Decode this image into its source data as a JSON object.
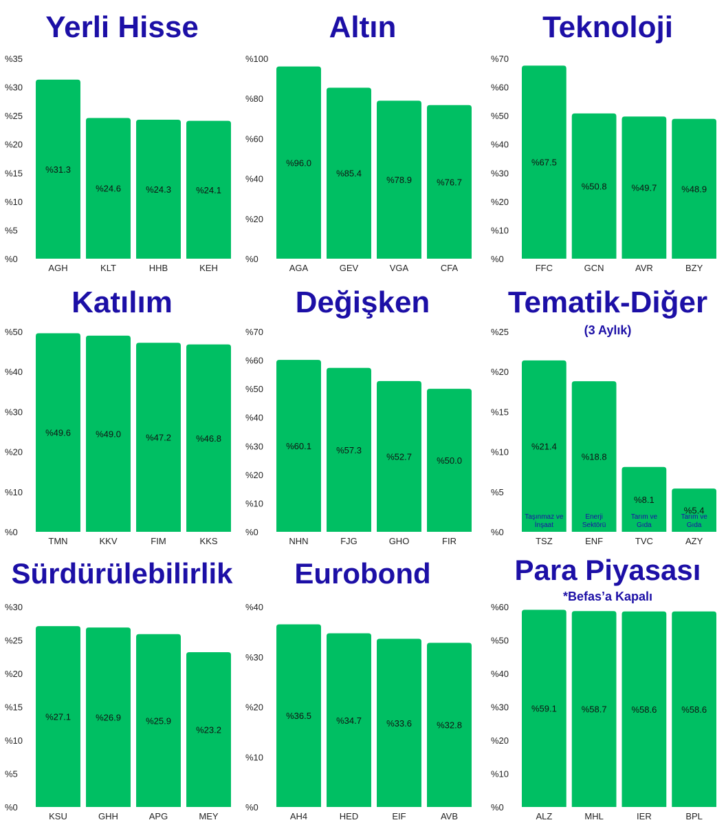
{
  "colors": {
    "bar": "#00bf63",
    "title": "#1c0fa6",
    "text": "#222222"
  },
  "chart_data": [
    {
      "type": "bar",
      "title": "Yerli Hisse",
      "subtitle": "",
      "ylim": [
        0,
        35
      ],
      "yticks": [
        0,
        5,
        10,
        15,
        20,
        25,
        30,
        35
      ],
      "tick_prefix": "%",
      "categories": [
        "AGH",
        "KLT",
        "HHB",
        "KEH"
      ],
      "values": [
        31.3,
        24.6,
        24.3,
        24.1
      ],
      "data_labels": [
        "%31.3",
        "%24.6",
        "%24.3",
        "%24.1"
      ]
    },
    {
      "type": "bar",
      "title": "Altın",
      "subtitle": "",
      "ylim": [
        0,
        100
      ],
      "yticks": [
        0,
        20,
        40,
        60,
        80,
        100
      ],
      "tick_prefix": "%",
      "categories": [
        "AGA",
        "GEV",
        "VGA",
        "CFA"
      ],
      "values": [
        96.0,
        85.4,
        78.9,
        76.7
      ],
      "data_labels": [
        "%96.0",
        "%85.4",
        "%78.9",
        "%76.7"
      ]
    },
    {
      "type": "bar",
      "title": "Teknoloji",
      "subtitle": "",
      "ylim": [
        0,
        70
      ],
      "yticks": [
        0,
        10,
        20,
        30,
        40,
        50,
        60,
        70
      ],
      "tick_prefix": "%",
      "categories": [
        "FFC",
        "GCN",
        "AVR",
        "BZY"
      ],
      "values": [
        67.5,
        50.8,
        49.7,
        48.9
      ],
      "data_labels": [
        "%67.5",
        "%50.8",
        "%49.7",
        "%48.9"
      ]
    },
    {
      "type": "bar",
      "title": "Katılım",
      "subtitle": "",
      "ylim": [
        0,
        50
      ],
      "yticks": [
        0,
        10,
        20,
        30,
        40,
        50
      ],
      "tick_prefix": "%",
      "categories": [
        "TMN",
        "KKV",
        "FIM",
        "KKS"
      ],
      "values": [
        49.6,
        49.0,
        47.2,
        46.8
      ],
      "data_labels": [
        "%49.6",
        "%49.0",
        "%47.2",
        "%46.8"
      ]
    },
    {
      "type": "bar",
      "title": "Değişken",
      "subtitle": "",
      "ylim": [
        0,
        70
      ],
      "yticks": [
        0,
        10,
        20,
        30,
        40,
        50,
        60,
        70
      ],
      "tick_prefix": "%",
      "categories": [
        "NHN",
        "FJG",
        "GHO",
        "FIR"
      ],
      "values": [
        60.1,
        57.3,
        52.7,
        50.0
      ],
      "data_labels": [
        "%60.1",
        "%57.3",
        "%52.7",
        "%50.0"
      ]
    },
    {
      "type": "bar",
      "title": "Tematik-Diğer",
      "subtitle": "(3 Aylık)",
      "ylim": [
        0,
        25
      ],
      "yticks": [
        0,
        5,
        10,
        15,
        20,
        25
      ],
      "tick_prefix": "%",
      "categories": [
        "TSZ",
        "ENF",
        "TVC",
        "AZY"
      ],
      "values": [
        21.4,
        18.8,
        8.1,
        5.4
      ],
      "data_labels": [
        "%21.4",
        "%18.8",
        "%8.1",
        "%5.4"
      ],
      "annotations": [
        [
          "Taşınmaz ve",
          "İnşaat"
        ],
        [
          "Enerji",
          "Sektörü"
        ],
        [
          "Tarım ve",
          "Gıda"
        ],
        [
          "Tarım ve",
          "Gıda"
        ]
      ]
    },
    {
      "type": "bar",
      "title": "Sürdürülebilirlik",
      "subtitle": "",
      "ylim": [
        0,
        30
      ],
      "yticks": [
        0,
        5,
        10,
        15,
        20,
        25,
        30
      ],
      "tick_prefix": "%",
      "categories": [
        "KSU",
        "GHH",
        "APG",
        "MEY"
      ],
      "values": [
        27.1,
        26.9,
        25.9,
        23.2
      ],
      "data_labels": [
        "%27.1",
        "%26.9",
        "%25.9",
        "%23.2"
      ]
    },
    {
      "type": "bar",
      "title": "Eurobond",
      "subtitle": "",
      "ylim": [
        0,
        40
      ],
      "yticks": [
        0,
        10,
        20,
        30,
        40
      ],
      "tick_prefix": "%",
      "categories": [
        "AH4",
        "HED",
        "EIF",
        "AVB"
      ],
      "values": [
        36.5,
        34.7,
        33.6,
        32.8
      ],
      "data_labels": [
        "%36.5",
        "%34.7",
        "%33.6",
        "%32.8"
      ]
    },
    {
      "type": "bar",
      "title": "Para Piyasası",
      "subtitle": "*Befas’a Kapalı",
      "ylim": [
        0,
        60
      ],
      "yticks": [
        0,
        10,
        20,
        30,
        40,
        50,
        60
      ],
      "tick_prefix": "%",
      "categories": [
        "ALZ",
        "MHL",
        "IER",
        "BPL"
      ],
      "values": [
        59.1,
        58.7,
        58.6,
        58.6
      ],
      "data_labels": [
        "%59.1",
        "%58.7",
        "%58.6",
        "%58.6"
      ]
    }
  ]
}
